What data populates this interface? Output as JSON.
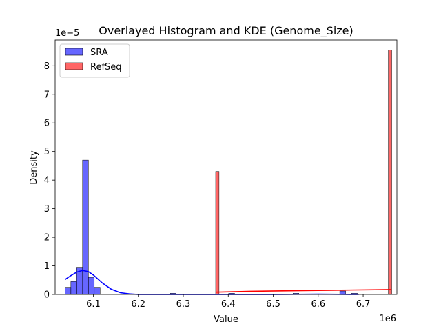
{
  "chart_data": {
    "type": "bar",
    "title": "Overlayed Histogram and KDE (Genome_Size)",
    "xlabel": "Value",
    "ylabel": "Density",
    "x_offset_label": "1e6",
    "y_offset_label": "1e−5",
    "xlim": [
      6.015,
      6.775
    ],
    "ylim": [
      0,
      8.9
    ],
    "x_ticks": [
      6.1,
      6.2,
      6.3,
      6.4,
      6.5,
      6.6,
      6.7
    ],
    "x_tick_labels": [
      "6.1",
      "6.2",
      "6.3",
      "6.4",
      "6.5",
      "6.6",
      "6.7"
    ],
    "y_ticks": [
      0,
      1,
      2,
      3,
      4,
      5,
      6,
      7,
      8
    ],
    "y_tick_labels": [
      "0",
      "1",
      "2",
      "3",
      "4",
      "5",
      "6",
      "7",
      "8"
    ],
    "grid": false,
    "legend": {
      "position": "top-left"
    },
    "series": [
      {
        "name": "SRA",
        "color": "#0000ff",
        "bin_width": 0.013,
        "bins": [
          {
            "x0": 6.037,
            "value": 0.25
          },
          {
            "x0": 6.05,
            "value": 0.45
          },
          {
            "x0": 6.063,
            "value": 0.95
          },
          {
            "x0": 6.076,
            "value": 4.7
          },
          {
            "x0": 6.089,
            "value": 0.6
          },
          {
            "x0": 6.102,
            "value": 0.25
          },
          {
            "x0": 6.271,
            "value": 0.04
          },
          {
            "x0": 6.401,
            "value": 0.04
          },
          {
            "x0": 6.544,
            "value": 0.04
          },
          {
            "x0": 6.648,
            "value": 0.12
          },
          {
            "x0": 6.674,
            "value": 0.04
          }
        ],
        "kde": [
          [
            6.037,
            0.52
          ],
          [
            6.05,
            0.66
          ],
          [
            6.063,
            0.78
          ],
          [
            6.076,
            0.84
          ],
          [
            6.089,
            0.8
          ],
          [
            6.1,
            0.68
          ],
          [
            6.12,
            0.4
          ],
          [
            6.14,
            0.18
          ],
          [
            6.16,
            0.06
          ],
          [
            6.18,
            0.02
          ],
          [
            6.2,
            0.0
          ],
          [
            6.35,
            0.0
          ],
          [
            6.5,
            0.0
          ],
          [
            6.6,
            0.01
          ],
          [
            6.69,
            0.0
          ]
        ]
      },
      {
        "name": "RefSeq",
        "color": "#ff0000",
        "bin_width": 0.0075,
        "bins": [
          {
            "x0": 6.372,
            "value": 4.3
          },
          {
            "x0": 6.756,
            "value": 8.55
          }
        ],
        "kde": [
          [
            6.372,
            0.08
          ],
          [
            6.45,
            0.11
          ],
          [
            6.55,
            0.13
          ],
          [
            6.65,
            0.15
          ],
          [
            6.763,
            0.17
          ]
        ]
      }
    ]
  }
}
